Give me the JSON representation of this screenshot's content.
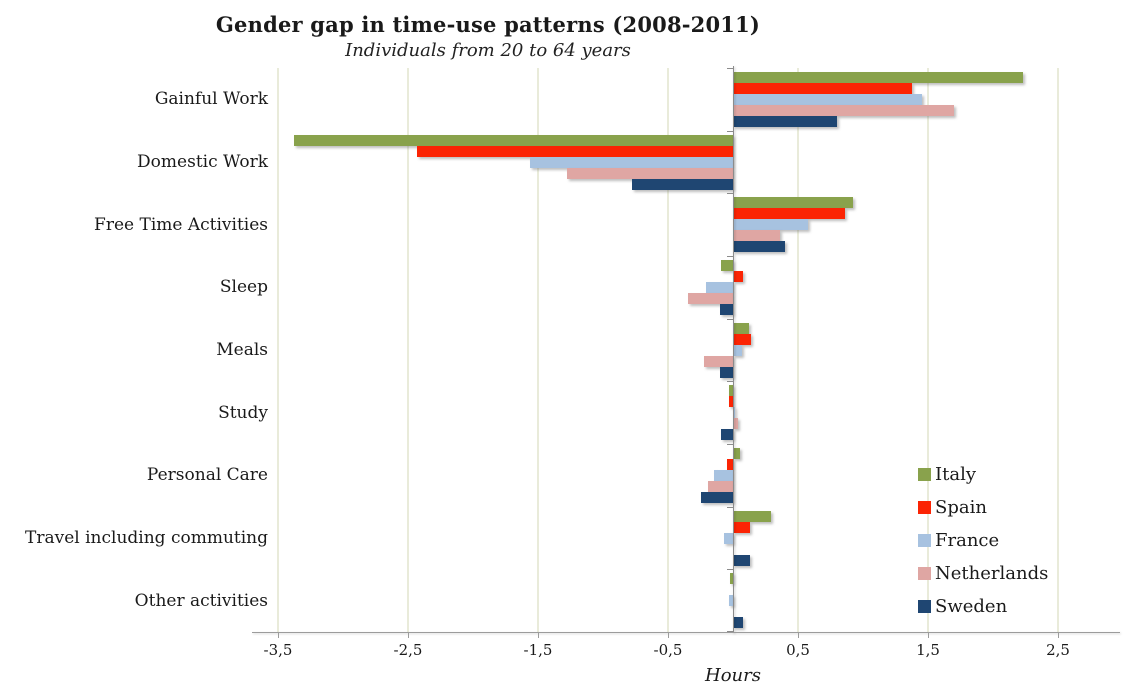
{
  "chart_data": {
    "type": "bar",
    "orientation": "horizontal",
    "title": "Gender gap in time-use patterns (2008-2011)",
    "subtitle": "Individuals from 20 to 64 years",
    "xlabel": "Hours",
    "xlim": [
      -3.5,
      2.5
    ],
    "grid": "vertical-gridlines-at-ticks",
    "legend_position": "right-middle",
    "x_ticks": [
      {
        "value": -3.5,
        "label": "-3,5"
      },
      {
        "value": -2.5,
        "label": "-2,5"
      },
      {
        "value": -1.5,
        "label": "-1,5"
      },
      {
        "value": -0.5,
        "label": "-0,5"
      },
      {
        "value": 0.5,
        "label": "0,5"
      },
      {
        "value": 1.5,
        "label": "1,5"
      },
      {
        "value": 2.5,
        "label": "2,5"
      }
    ],
    "categories": [
      "Gainful Work",
      "Domestic Work",
      "Free Time Activities",
      "Sleep",
      "Meals",
      "Study",
      "Personal Care",
      "Travel including commuting",
      "Other activities"
    ],
    "series": [
      {
        "name": "Italy",
        "color": "#89A24C",
        "values": [
          2.23,
          -3.38,
          0.92,
          -0.09,
          0.12,
          -0.03,
          0.05,
          0.29,
          -0.02
        ]
      },
      {
        "name": "Spain",
        "color": "#FB2404",
        "values": [
          1.38,
          -2.43,
          0.86,
          0.08,
          0.14,
          -0.03,
          -0.05,
          0.13,
          0.0
        ]
      },
      {
        "name": "France",
        "color": "#A7C2E0",
        "values": [
          1.45,
          -1.56,
          0.58,
          -0.21,
          0.07,
          0.01,
          -0.15,
          -0.07,
          -0.03
        ]
      },
      {
        "name": "Netherlands",
        "color": "#DFA6A3",
        "values": [
          1.7,
          -1.28,
          0.36,
          -0.35,
          -0.22,
          0.04,
          -0.19,
          0.0,
          0.0
        ]
      },
      {
        "name": "Sweden",
        "color": "#1F4672",
        "values": [
          0.8,
          -0.78,
          0.4,
          -0.1,
          -0.1,
          -0.09,
          -0.25,
          0.13,
          0.08
        ]
      }
    ],
    "colors": {
      "gridline": "#E9EBDA",
      "axis": "#9C9C9C",
      "background": "#FFFFFF"
    }
  }
}
